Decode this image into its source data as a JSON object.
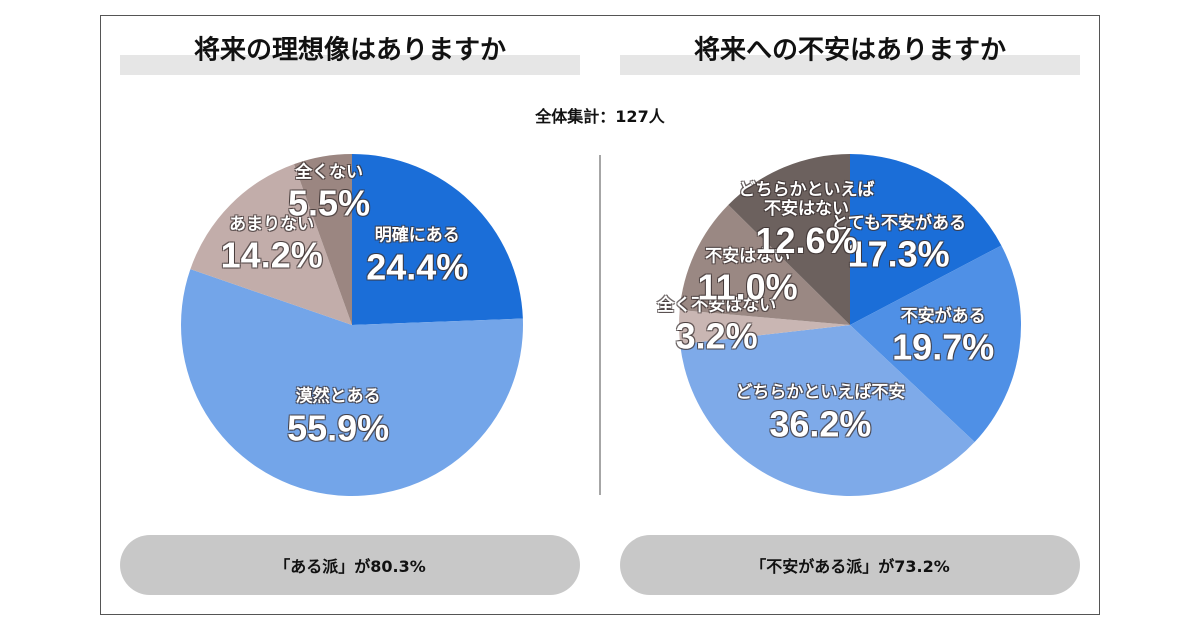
{
  "total_label": "全体集計：127人",
  "chart_data": [
    {
      "type": "pie",
      "title": "将来の理想像はありますか",
      "categories": [
        "明確にある",
        "漠然とある",
        "あまりない",
        "全くない"
      ],
      "values": [
        24.4,
        55.9,
        14.2,
        5.5
      ],
      "value_labels": [
        "24.4%",
        "55.9%",
        "14.2%",
        "5.5%"
      ],
      "colors": [
        "#1b6ed8",
        "#73a5e9",
        "#c2adaa",
        "#9b8681"
      ],
      "annotation": "「ある派」が80.3%"
    },
    {
      "type": "pie",
      "title": "将来への不安はありますか",
      "categories": [
        "とても不安がある",
        "不安がある",
        "どちらかといえば不安",
        "全く不安はない",
        "不安はない",
        "どちらかといえば\n不安はない"
      ],
      "values": [
        17.3,
        19.7,
        36.2,
        3.2,
        11.0,
        12.6
      ],
      "value_labels": [
        "17.3%",
        "19.7%",
        "36.2%",
        "3.2%",
        "11.0%",
        "12.6%"
      ],
      "colors": [
        "#1b6ed8",
        "#4f90e6",
        "#7eaae9",
        "#c9b6b3",
        "#9a8883",
        "#6c615e"
      ],
      "annotation": "「不安がある派」が73.2%"
    }
  ]
}
